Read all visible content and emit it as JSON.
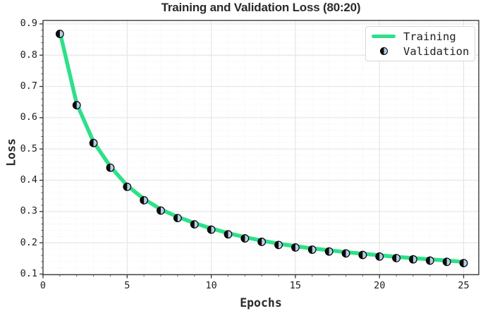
{
  "chart_data": {
    "type": "line",
    "title": "Training and Validation Loss (80:20)",
    "xlabel": "Epochs",
    "ylabel": "Loss",
    "xlim": [
      0,
      25.9
    ],
    "ylim": [
      0.098,
      0.911
    ],
    "grid": "major solid + minor dotted",
    "legend": {
      "position": "upper right",
      "entries": [
        {
          "label": "Training",
          "swatch": "thick-line"
        },
        {
          "label": "Validation",
          "swatch": "half-filled-circle"
        }
      ]
    },
    "x_ticks": {
      "values": [
        0,
        5,
        10,
        15,
        20,
        25
      ],
      "labels": [
        "0",
        "5",
        "10",
        "15",
        "20",
        "25"
      ]
    },
    "y_ticks": {
      "values": [
        0.1,
        0.2,
        0.3,
        0.4,
        0.5,
        0.6,
        0.7,
        0.8,
        0.9
      ],
      "labels": [
        "0.1",
        "0.2",
        "0.3",
        "0.4",
        "0.5",
        "0.6",
        "0.7",
        "0.8",
        "0.9"
      ]
    },
    "minor_steps": {
      "x": 1,
      "y": 0.02
    },
    "x": [
      1,
      2,
      3,
      4,
      5,
      6,
      7,
      8,
      9,
      10,
      11,
      12,
      13,
      14,
      15,
      16,
      17,
      18,
      19,
      20,
      21,
      22,
      23,
      24,
      25
    ],
    "series": [
      {
        "name": "Training",
        "style": "line",
        "color": "#2ee08a",
        "linewidth": 5.5,
        "values": [
          0.875,
          0.645,
          0.523,
          0.444,
          0.383,
          0.34,
          0.307,
          0.283,
          0.263,
          0.246,
          0.231,
          0.218,
          0.207,
          0.197,
          0.189,
          0.182,
          0.176,
          0.17,
          0.165,
          0.16,
          0.155,
          0.151,
          0.147,
          0.143,
          0.139
        ]
      },
      {
        "name": "Validation",
        "style": "scatter-half-filled-circle",
        "marker_size": 10.6,
        "edge_color": "#000000",
        "face_left": "#0d0d0d",
        "face_right": "#b7cdea",
        "values": [
          0.868,
          0.64,
          0.519,
          0.44,
          0.379,
          0.336,
          0.303,
          0.279,
          0.259,
          0.242,
          0.227,
          0.214,
          0.203,
          0.193,
          0.185,
          0.178,
          0.172,
          0.166,
          0.161,
          0.156,
          0.151,
          0.147,
          0.143,
          0.139,
          0.135
        ]
      }
    ],
    "style_colors": {
      "grid_major": "#e4e4e4",
      "grid_minor": "#efefef",
      "spine": "#3d3d3d",
      "tick": "#333333",
      "text": "#202020"
    }
  }
}
